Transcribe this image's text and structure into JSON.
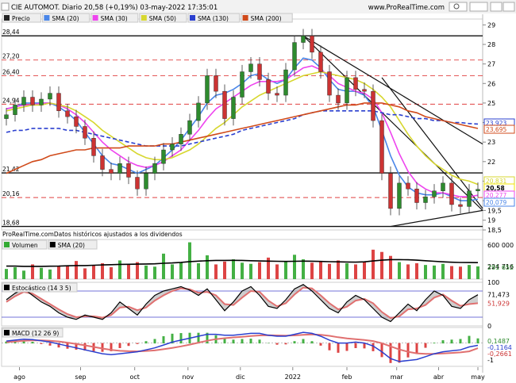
{
  "header": {
    "title": "CIE AUTOMOT. Diario 20,58 (+0,19%) 03-may-2022 17:35:01",
    "brand": "www.ProRealTime.com"
  },
  "price_panel": {
    "legend": [
      {
        "name": "Precio",
        "color": "#222222",
        "icon": "candlestick-swatch"
      },
      {
        "name": "SMA (20)",
        "color": "#4a86e8"
      },
      {
        "name": "SMA (30)",
        "color": "#ee44ee"
      },
      {
        "name": "SMA (50)",
        "color": "#d7d72f"
      },
      {
        "name": "SMA (130)",
        "color": "#2a3fcf"
      },
      {
        "name": "SMA (200)",
        "color": "#d04a1a"
      }
    ],
    "y_axis_ticks": [
      "29",
      "28",
      "27",
      "26",
      "25",
      "24",
      "23",
      "22",
      "21",
      "20",
      "19,5",
      "19",
      "18,5"
    ],
    "level_labels_left": [
      "28,44",
      "27,20",
      "26,40",
      "24,94",
      "21,42",
      "20,16",
      "18,68"
    ],
    "right_value_labels": [
      {
        "text": "23,923",
        "color": "#2a3fcf"
      },
      {
        "text": "23,695",
        "color": "#d04a1a"
      },
      {
        "text": "20,831",
        "color": "#d7d72f"
      },
      {
        "text": "20,58",
        "color": "#f2e600"
      },
      {
        "text": "20,277",
        "color": "#ee44ee"
      },
      {
        "text": "20,079",
        "color": "#4a86e8"
      }
    ],
    "footer_text": "ProRealTime.comDatos históricos ajustados a los dividendos"
  },
  "volume_panel": {
    "legend": [
      {
        "name": "Volumen",
        "color": "#33aa33"
      },
      {
        "name": "SMA (20)",
        "color": "#000000"
      }
    ],
    "y_axis_labels": [
      "600 000",
      "224 716",
      "291 652"
    ]
  },
  "stochastic_panel": {
    "legend": [
      {
        "name": "Estocástico (14 3 5)",
        "color": "#000000"
      }
    ],
    "y_axis_labels": [
      "100",
      "71,473",
      "51,929",
      "0"
    ]
  },
  "macd_panel": {
    "legend": [
      {
        "name": "MACD (12 26 9)",
        "color": "#000000"
      }
    ],
    "y_axis_labels": [
      "0,1487",
      "-0,1164",
      "-0,2661",
      "-1"
    ]
  },
  "time_axis": [
    "ago",
    "sep",
    "oct",
    "nov",
    "dic",
    "2022",
    "feb",
    "mar",
    "abr",
    "may"
  ],
  "colors": {
    "up": "#2e8b2e",
    "down": "#cc3333",
    "grid_dash": "#e04040",
    "trendline": "#111111",
    "sma130": "#2a3fcf",
    "sma200": "#d04a1a"
  },
  "chart_data": [
    {
      "type": "line",
      "title": "CIE AUTOMOT. Diario 20,58 (+0,19%) 03-may-2022 17:35:01",
      "x_range": [
        "2021-07-26",
        "2022-05-03"
      ],
      "ylim": [
        18.5,
        29.3
      ],
      "y_ticks": [
        29,
        28,
        27,
        26,
        25,
        24,
        23,
        22,
        21,
        20,
        19.5,
        19,
        18.5
      ],
      "horizontal_levels": [
        28.44,
        27.2,
        26.4,
        24.94,
        21.42,
        20.16,
        18.68
      ],
      "series": [
        {
          "name": "Precio",
          "values": [
            24.4,
            24.9,
            25.3,
            24.9,
            25.2,
            25.5,
            24.6,
            24.3,
            23.8,
            23.2,
            22.3,
            21.6,
            21.4,
            21.9,
            21.2,
            20.6,
            21.4,
            21.9,
            22.6,
            22.9,
            23.4,
            24.1,
            25.0,
            26.4,
            25.6,
            24.2,
            25.3,
            26.6,
            27.0,
            26.2,
            25.5,
            25.4,
            26.7,
            28.1,
            28.44,
            27.6,
            26.6,
            25.4,
            25.0,
            26.3,
            25.7,
            25.6,
            24.1,
            21.4,
            19.6,
            20.9,
            20.6,
            19.9,
            20.2,
            20.5,
            20.9,
            19.8,
            19.7,
            20.5,
            20.58
          ]
        },
        {
          "name": "SMA (20)",
          "values": [
            24.7,
            24.8,
            25.0,
            25.0,
            25.0,
            25.0,
            24.8,
            24.5,
            24.1,
            23.5,
            22.9,
            22.3,
            21.9,
            21.8,
            21.6,
            21.4,
            21.6,
            21.8,
            22.2,
            22.6,
            23.1,
            23.7,
            24.3,
            25.0,
            25.4,
            25.5,
            25.7,
            26.0,
            26.4,
            26.5,
            26.2,
            26.0,
            26.2,
            26.8,
            27.3,
            27.2,
            26.8,
            26.2,
            25.7,
            25.6,
            25.6,
            25.4,
            24.8,
            23.6,
            22.3,
            21.3,
            20.7,
            20.4,
            20.3,
            20.3,
            20.4,
            20.2,
            20.0,
            20.0,
            20.079
          ]
        },
        {
          "name": "SMA (30)",
          "values": [
            24.7,
            24.8,
            24.9,
            24.9,
            25.0,
            25.0,
            24.9,
            24.7,
            24.4,
            24.0,
            23.5,
            23.0,
            22.6,
            22.3,
            22.0,
            21.8,
            21.7,
            21.8,
            22.0,
            22.3,
            22.6,
            23.1,
            23.6,
            24.2,
            24.7,
            25.0,
            25.3,
            25.6,
            25.9,
            26.1,
            26.1,
            26.1,
            26.2,
            26.5,
            26.8,
            26.9,
            26.7,
            26.4,
            26.0,
            25.8,
            25.6,
            25.5,
            25.2,
            24.5,
            23.5,
            22.4,
            21.5,
            20.9,
            20.6,
            20.4,
            20.4,
            20.3,
            20.2,
            20.2,
            20.277
          ]
        },
        {
          "name": "SMA (50)",
          "values": [
            24.6,
            24.7,
            24.8,
            24.9,
            24.9,
            25.0,
            24.9,
            24.8,
            24.6,
            24.3,
            24.0,
            23.6,
            23.3,
            23.0,
            22.7,
            22.4,
            22.2,
            22.1,
            22.1,
            22.2,
            22.4,
            22.6,
            22.9,
            23.3,
            23.7,
            24.0,
            24.4,
            24.8,
            25.1,
            25.4,
            25.6,
            25.8,
            26.0,
            26.2,
            26.4,
            26.5,
            26.6,
            26.5,
            26.4,
            26.3,
            26.2,
            26.0,
            25.7,
            25.3,
            24.8,
            24.1,
            23.4,
            22.8,
            22.3,
            21.9,
            21.6,
            21.3,
            21.1,
            21.0,
            20.831
          ]
        },
        {
          "name": "SMA (130)",
          "values": [
            23.5,
            23.6,
            23.6,
            23.7,
            23.7,
            23.7,
            23.7,
            23.6,
            23.6,
            23.5,
            23.4,
            23.3,
            23.2,
            23.1,
            23.0,
            22.9,
            22.8,
            22.8,
            22.8,
            22.8,
            22.8,
            22.9,
            23.0,
            23.1,
            23.2,
            23.3,
            23.4,
            23.6,
            23.7,
            23.8,
            23.9,
            24.0,
            24.1,
            24.2,
            24.4,
            24.5,
            24.6,
            24.6,
            24.6,
            24.6,
            24.6,
            24.6,
            24.6,
            24.5,
            24.4,
            24.4,
            24.3,
            24.2,
            24.2,
            24.1,
            24.1,
            24.0,
            24.0,
            23.95,
            23.923
          ]
        },
        {
          "name": "SMA (200)",
          "values": [
            21.4,
            21.6,
            21.8,
            22.0,
            22.1,
            22.3,
            22.4,
            22.5,
            22.6,
            22.6,
            22.7,
            22.7,
            22.7,
            22.7,
            22.8,
            22.8,
            22.8,
            22.8,
            22.9,
            22.9,
            23.0,
            23.1,
            23.2,
            23.3,
            23.4,
            23.5,
            23.6,
            23.7,
            23.8,
            23.9,
            24.0,
            24.1,
            24.2,
            24.3,
            24.4,
            24.5,
            24.6,
            24.7,
            24.8,
            24.9,
            24.9,
            25.0,
            25.0,
            25.0,
            24.9,
            24.8,
            24.6,
            24.5,
            24.3,
            24.2,
            24.1,
            24.0,
            23.9,
            23.8,
            23.695
          ]
        }
      ]
    },
    {
      "type": "bar",
      "title": "Volumen",
      "ylim": [
        0,
        700000
      ],
      "series": [
        {
          "name": "Volumen",
          "values": [
            180000,
            210000,
            150000,
            260000,
            200000,
            170000,
            230000,
            240000,
            320000,
            190000,
            250000,
            280000,
            210000,
            330000,
            260000,
            300000,
            240000,
            220000,
            450000,
            260000,
            300000,
            650000,
            280000,
            420000,
            260000,
            310000,
            350000,
            290000,
            270000,
            300000,
            380000,
            260000,
            310000,
            430000,
            350000,
            290000,
            310000,
            270000,
            330000,
            280000,
            260000,
            300000,
            520000,
            480000,
            410000,
            300000,
            260000,
            280000,
            250000,
            240000,
            270000,
            230000,
            220000,
            250000,
            224716
          ]
        },
        {
          "name": "SMA (20)",
          "values": [
            230000,
            230000,
            225000,
            225000,
            225000,
            228000,
            230000,
            235000,
            240000,
            240000,
            245000,
            250000,
            255000,
            260000,
            262000,
            265000,
            268000,
            270000,
            280000,
            285000,
            295000,
            310000,
            318000,
            325000,
            330000,
            330000,
            332000,
            330000,
            325000,
            320000,
            318000,
            315000,
            312000,
            315000,
            318000,
            316000,
            312000,
            308000,
            305000,
            302000,
            300000,
            305000,
            320000,
            335000,
            345000,
            345000,
            342000,
            335000,
            325000,
            315000,
            305000,
            298000,
            294000,
            292000,
            291652
          ]
        }
      ]
    },
    {
      "type": "line",
      "title": "Estocástico (14 3 5)",
      "ylim": [
        0,
        100
      ],
      "series": [
        {
          "name": "%K",
          "values": [
            60,
            75,
            85,
            70,
            55,
            45,
            30,
            20,
            15,
            25,
            20,
            15,
            30,
            55,
            40,
            25,
            50,
            70,
            80,
            85,
            90,
            82,
            70,
            85,
            60,
            35,
            55,
            80,
            90,
            70,
            45,
            40,
            60,
            85,
            95,
            80,
            60,
            40,
            30,
            55,
            70,
            60,
            40,
            20,
            10,
            30,
            50,
            35,
            60,
            80,
            70,
            45,
            40,
            60,
            71.473
          ]
        },
        {
          "name": "%D",
          "values": [
            55,
            68,
            78,
            74,
            62,
            50,
            38,
            27,
            20,
            22,
            22,
            19,
            25,
            42,
            44,
            36,
            42,
            58,
            70,
            80,
            86,
            84,
            76,
            78,
            70,
            50,
            48,
            65,
            80,
            78,
            58,
            45,
            52,
            72,
            88,
            86,
            70,
            52,
            38,
            44,
            58,
            62,
            52,
            32,
            18,
            22,
            38,
            40,
            48,
            65,
            72,
            58,
            46,
            50,
            51.929
          ]
        }
      ]
    },
    {
      "type": "line",
      "title": "MACD (12 26 9)",
      "ylim": [
        -1.2,
        0.8
      ],
      "series": [
        {
          "name": "MACD",
          "values": [
            0.1,
            0.15,
            0.2,
            0.18,
            0.12,
            0.05,
            -0.05,
            -0.15,
            -0.25,
            -0.35,
            -0.45,
            -0.55,
            -0.6,
            -0.55,
            -0.5,
            -0.45,
            -0.35,
            -0.25,
            -0.1,
            0.05,
            0.15,
            0.25,
            0.35,
            0.45,
            0.45,
            0.4,
            0.4,
            0.45,
            0.5,
            0.5,
            0.4,
            0.35,
            0.35,
            0.45,
            0.55,
            0.5,
            0.35,
            0.15,
            0.0,
            0.0,
            0.05,
            0.0,
            -0.15,
            -0.45,
            -0.8,
            -0.95,
            -0.9,
            -0.85,
            -0.7,
            -0.55,
            -0.45,
            -0.4,
            -0.35,
            -0.2,
            -0.1164
          ]
        },
        {
          "name": "Señal",
          "values": [
            0.05,
            0.08,
            0.12,
            0.14,
            0.14,
            0.12,
            0.08,
            0.02,
            -0.05,
            -0.12,
            -0.2,
            -0.28,
            -0.35,
            -0.4,
            -0.42,
            -0.43,
            -0.41,
            -0.38,
            -0.32,
            -0.25,
            -0.17,
            -0.08,
            0.02,
            0.12,
            0.2,
            0.25,
            0.29,
            0.32,
            0.36,
            0.39,
            0.4,
            0.39,
            0.38,
            0.39,
            0.42,
            0.44,
            0.42,
            0.37,
            0.3,
            0.24,
            0.2,
            0.16,
            0.1,
            -0.01,
            -0.17,
            -0.33,
            -0.45,
            -0.53,
            -0.56,
            -0.56,
            -0.54,
            -0.51,
            -0.48,
            -0.43,
            -0.2661
          ]
        }
      ]
    }
  ]
}
